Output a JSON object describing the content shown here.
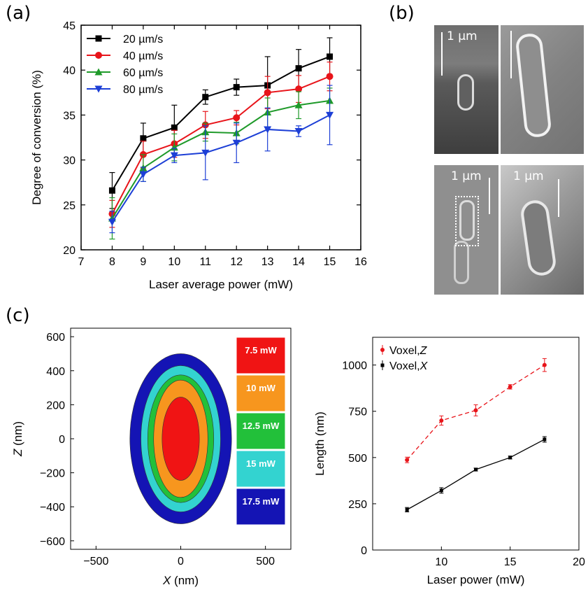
{
  "panel_labels": {
    "a": "(a)",
    "b": "(b)",
    "c": "(c)"
  },
  "sem": {
    "scale_top_left": "1 µm",
    "scale_bottom_left": "1 µm",
    "scale_bottom_right": "1 µm"
  },
  "chart_data": [
    {
      "id": "a",
      "type": "line",
      "title": "",
      "xlabel": "Laser average power (mW)",
      "ylabel": "Degree of conversion (%)",
      "xlim": [
        7,
        16
      ],
      "ylim": [
        20,
        45
      ],
      "xticks": [
        7,
        8,
        9,
        10,
        11,
        12,
        13,
        14,
        15,
        16
      ],
      "yticks": [
        20,
        25,
        30,
        35,
        40,
        45
      ],
      "legend_position": "top-left",
      "x": [
        8,
        9,
        10,
        11,
        12,
        13,
        14,
        15
      ],
      "series": [
        {
          "name": "20 µm/s",
          "color": "#000000",
          "marker": "square",
          "values": [
            26.6,
            32.4,
            33.6,
            37.0,
            38.1,
            38.3,
            40.2,
            41.5
          ],
          "errors": [
            2.0,
            1.7,
            2.5,
            0.8,
            0.9,
            3.2,
            2.1,
            2.1
          ]
        },
        {
          "name": "40 µm/s",
          "color": "#e8141a",
          "marker": "circle",
          "values": [
            24.0,
            30.6,
            31.8,
            33.9,
            34.7,
            37.5,
            37.9,
            39.3
          ],
          "errors": [
            1.5,
            1.5,
            1.5,
            1.5,
            0.8,
            1.8,
            1.5,
            1.6
          ]
        },
        {
          "name": "60 µm/s",
          "color": "#1f9a2a",
          "marker": "triangle-up",
          "values": [
            23.5,
            29.1,
            31.4,
            33.1,
            33.0,
            35.3,
            36.1,
            36.6
          ],
          "errors": [
            2.3,
            1.5,
            1.5,
            1.0,
            1.2,
            1.6,
            1.5,
            1.4
          ]
        },
        {
          "name": "80 µm/s",
          "color": "#1d3fd6",
          "marker": "triangle-down",
          "values": [
            23.1,
            28.4,
            30.5,
            30.8,
            31.9,
            33.4,
            33.2,
            35.0
          ],
          "errors": [
            1.2,
            0.8,
            0.8,
            3.0,
            2.2,
            2.4,
            0.6,
            3.3
          ]
        }
      ]
    },
    {
      "id": "c-left",
      "type": "area",
      "xlabel_italic": "X",
      "xlabel_unit": " (nm)",
      "ylabel_italic": "Z",
      "ylabel_unit": " (nm)",
      "xlim": [
        -650,
        650
      ],
      "ylim": [
        -650,
        650
      ],
      "xticks": [
        -500,
        0,
        500
      ],
      "yticks": [
        -600,
        -400,
        -200,
        0,
        200,
        400,
        600
      ],
      "legend_position": "right",
      "series": [
        {
          "name": "17.5 mW",
          "color": "#1414b4",
          "half_width_nm": 300,
          "half_height_nm": 500
        },
        {
          "name": "15 mW",
          "color": "#33d3d0",
          "half_width_nm": 235,
          "half_height_nm": 430
        },
        {
          "name": "12.5 mW",
          "color": "#22c03a",
          "half_width_nm": 195,
          "half_height_nm": 375
        },
        {
          "name": "10 mW",
          "color": "#f7961e",
          "half_width_nm": 160,
          "half_height_nm": 345
        },
        {
          "name": "7.5 mW",
          "color": "#f01414",
          "half_width_nm": 110,
          "half_height_nm": 245
        }
      ],
      "legend_order": [
        "7.5 mW",
        "10 mW",
        "12.5 mW",
        "15 mW",
        "17.5 mW"
      ]
    },
    {
      "id": "c-right",
      "type": "line",
      "xlabel": "Laser power (mW)",
      "ylabel": "Length (nm)",
      "xlim": [
        5,
        20
      ],
      "ylim": [
        0,
        1150
      ],
      "xticks": [
        10,
        15,
        20
      ],
      "yticks": [
        0,
        250,
        500,
        750,
        1000
      ],
      "legend_position": "top-left",
      "x": [
        7.5,
        10,
        12.5,
        15,
        17.5
      ],
      "series": [
        {
          "name": "Voxel,",
          "name_italic": "Z",
          "color": "#e8141a",
          "dashed": true,
          "values": [
            487,
            700,
            755,
            882,
            1000
          ],
          "errors": [
            15,
            25,
            30,
            12,
            35
          ]
        },
        {
          "name": "Voxel,",
          "name_italic": "X",
          "color": "#000000",
          "dashed": false,
          "values": [
            218,
            322,
            435,
            500,
            598
          ],
          "errors": [
            12,
            15,
            8,
            8,
            15
          ]
        }
      ]
    }
  ]
}
